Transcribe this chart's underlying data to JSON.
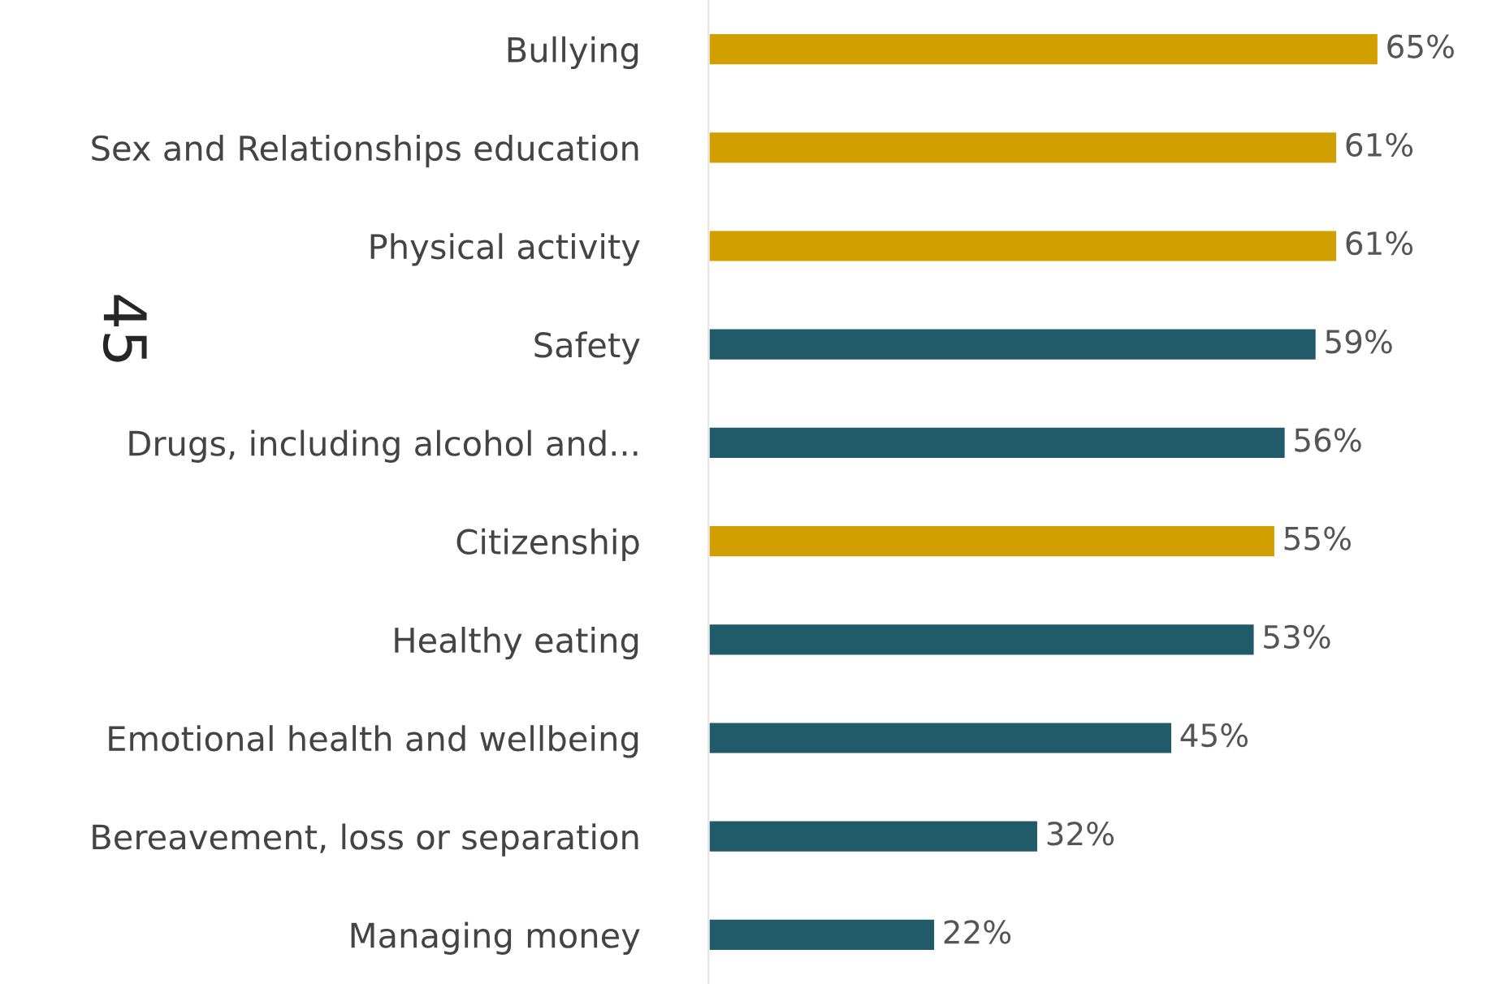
{
  "chart_data": {
    "type": "bar",
    "orientation": "horizontal",
    "categories": [
      "Bullying",
      "Sex and Relationships education",
      "Physical activity",
      "Safety",
      "Drugs, including alcohol and...",
      "Citizenship",
      "Healthy eating",
      "Emotional health and wellbeing",
      "Bereavement, loss or separation",
      "Managing money"
    ],
    "values": [
      65,
      61,
      61,
      59,
      56,
      55,
      53,
      45,
      32,
      22
    ],
    "colors": [
      "#d19f00",
      "#d19f00",
      "#d19f00",
      "#215a68",
      "#215a68",
      "#d19f00",
      "#215a68",
      "#215a68",
      "#215a68",
      "#215a68"
    ],
    "value_labels": [
      "65%",
      "61%",
      "61%",
      "59%",
      "56%",
      "55%",
      "53%",
      "45%",
      "32%",
      "22%"
    ],
    "annotations": [
      "45"
    ],
    "grid": false,
    "legend": false
  }
}
